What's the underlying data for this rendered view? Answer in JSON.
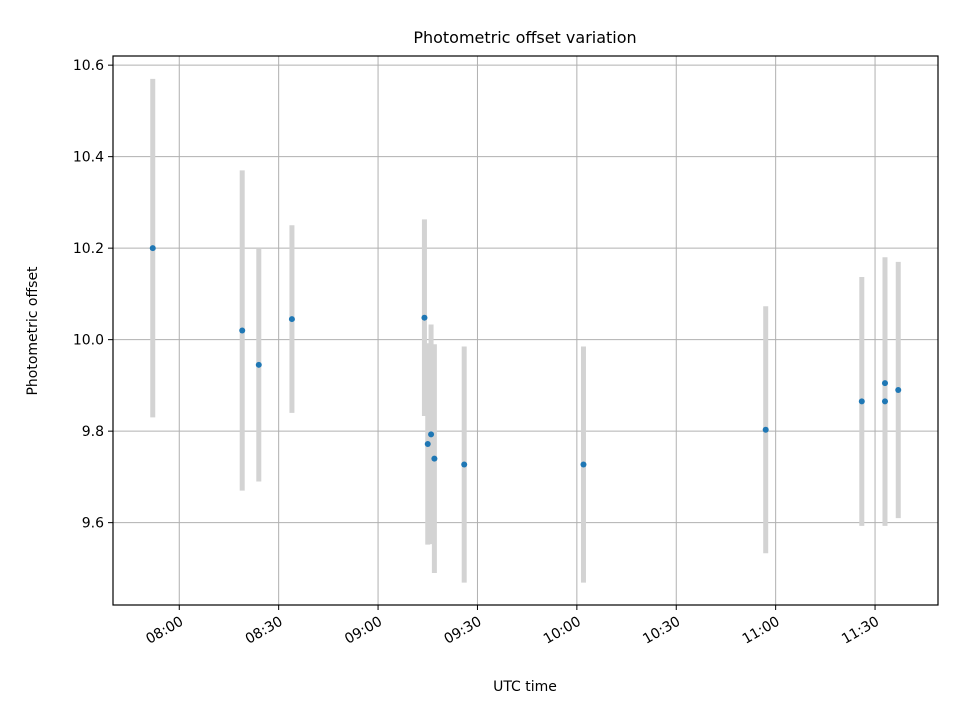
{
  "chart_data": {
    "type": "scatter",
    "title": "Photometric offset variation",
    "xlabel": "UTC time",
    "ylabel": "Photometric offset",
    "x_tick_labels": [
      "08:00",
      "08:30",
      "09:00",
      "09:30",
      "10:00",
      "10:30",
      "11:00",
      "11:30"
    ],
    "y_tick_labels": [
      "9.6",
      "9.8",
      "10.0",
      "10.2",
      "10.4",
      "10.6"
    ],
    "xlim": [
      "07:40",
      "11:49"
    ],
    "ylim": [
      9.42,
      10.62
    ],
    "grid": true,
    "marker_color": "#1f77b4",
    "errorbar_color": "#d3d3d3",
    "series": [
      {
        "points": [
          {
            "x": "07:52",
            "y": 10.2,
            "err": 0.37
          },
          {
            "x": "08:19",
            "y": 10.02,
            "err": 0.35
          },
          {
            "x": "08:24",
            "y": 9.945,
            "err": 0.255
          },
          {
            "x": "08:34",
            "y": 10.045,
            "err": 0.205
          },
          {
            "x": "09:14",
            "y": 10.048,
            "err": 0.215
          },
          {
            "x": "09:15",
            "y": 9.772,
            "err": 0.22
          },
          {
            "x": "09:16",
            "y": 9.793,
            "err": 0.24
          },
          {
            "x": "09:17",
            "y": 9.74,
            "err": 0.25
          },
          {
            "x": "09:26",
            "y": 9.727,
            "err": 0.258
          },
          {
            "x": "10:02",
            "y": 9.727,
            "err": 0.258
          },
          {
            "x": "10:57",
            "y": 9.803,
            "err": 0.27
          },
          {
            "x": "11:26",
            "y": 9.865,
            "err": 0.272
          },
          {
            "x": "11:33",
            "y": 9.865,
            "err": 0.272
          },
          {
            "x": "11:33",
            "y": 9.905,
            "err": 0.275
          },
          {
            "x": "11:37",
            "y": 9.89,
            "err": 0.28
          }
        ]
      }
    ]
  }
}
